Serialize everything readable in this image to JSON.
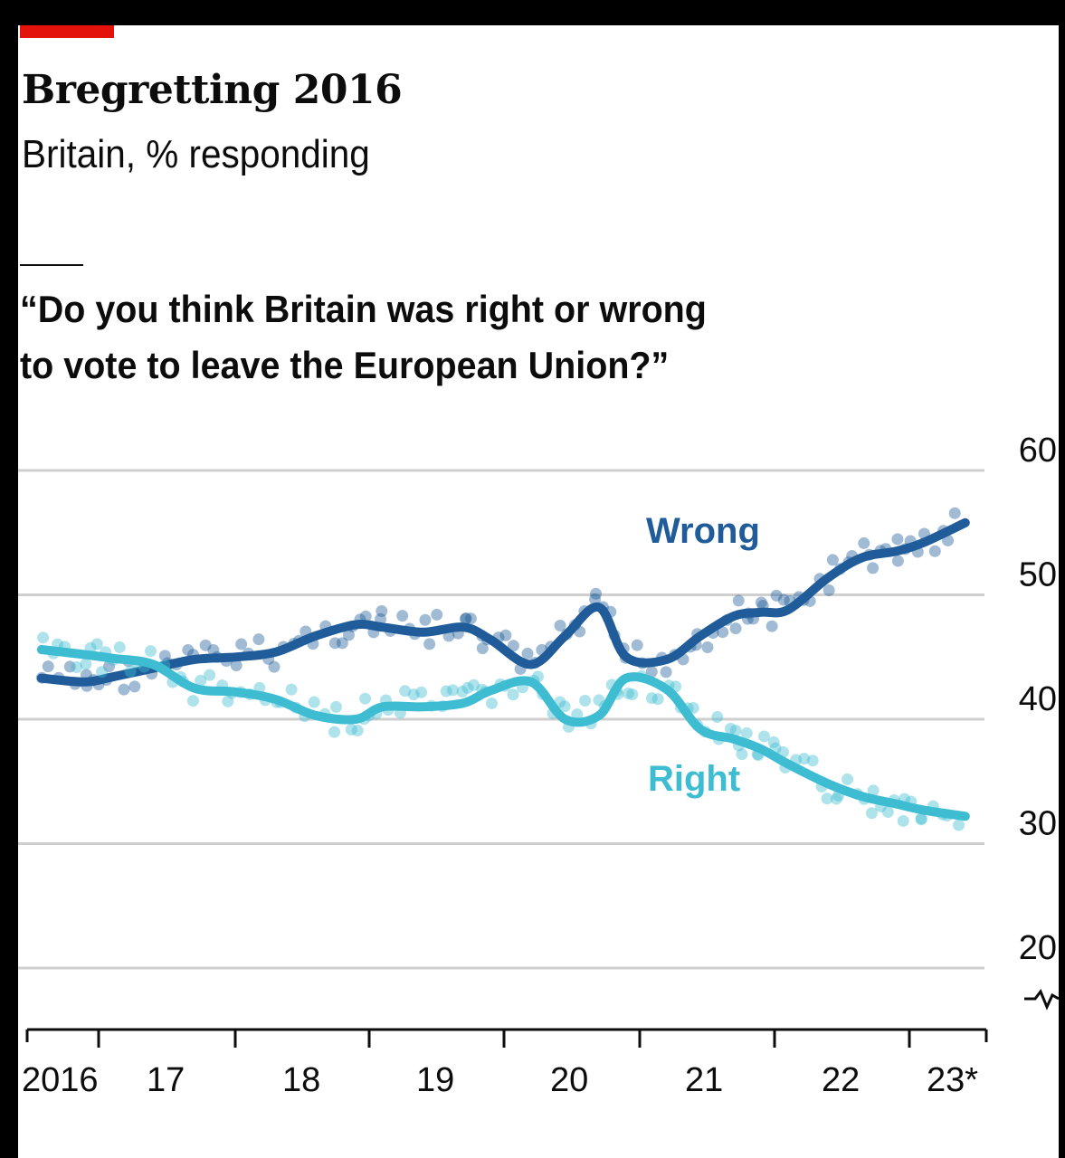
{
  "title": "Bregretting 2016",
  "subtitle": "Britain, % responding",
  "question_lines": [
    "“Do you think Britain was right or wrong",
    "to vote to leave the European Union?”"
  ],
  "colors": {
    "accent": "#e3120b",
    "wrong": "#1f5c99",
    "right": "#3ebcd2",
    "grid": "#cfcfcf",
    "text": "#0c0c0c"
  },
  "chart_data": {
    "type": "line",
    "xlabel": "",
    "ylabel": "",
    "x_ticks": [
      "2016",
      "17",
      "18",
      "19",
      "20",
      "21",
      "22",
      "23*"
    ],
    "y_ticks": [
      60,
      50,
      40,
      30,
      20
    ],
    "ylim": [
      15,
      60
    ],
    "y_axis_break": true,
    "grid": true,
    "series": [
      {
        "name": "Wrong",
        "color": "#1f5c99",
        "x": [
          2016.6,
          2016.9,
          2017.1,
          2017.4,
          2017.7,
          2018.0,
          2018.3,
          2018.6,
          2018.9,
          2019.1,
          2019.4,
          2019.7,
          2019.9,
          2020.2,
          2020.45,
          2020.7,
          2020.9,
          2021.2,
          2021.45,
          2021.7,
          2021.9,
          2022.1,
          2022.4,
          2022.65,
          2022.9,
          2023.1,
          2023.4
        ],
        "y": [
          43.3,
          43.0,
          43.4,
          44.1,
          44.8,
          45.0,
          45.4,
          46.7,
          47.6,
          47.4,
          47.0,
          47.4,
          46.4,
          44.4,
          46.7,
          49.0,
          45.0,
          44.8,
          46.7,
          48.3,
          48.6,
          48.8,
          51.4,
          53.0,
          53.5,
          54.2,
          55.8
        ]
      },
      {
        "name": "Right",
        "color": "#3ebcd2",
        "x": [
          2016.6,
          2016.9,
          2017.1,
          2017.4,
          2017.7,
          2018.0,
          2018.3,
          2018.6,
          2018.9,
          2019.1,
          2019.4,
          2019.7,
          2019.9,
          2020.2,
          2020.45,
          2020.7,
          2020.9,
          2021.2,
          2021.45,
          2021.7,
          2021.9,
          2022.1,
          2022.4,
          2022.65,
          2022.9,
          2023.1,
          2023.4
        ],
        "y": [
          45.6,
          45.2,
          44.9,
          44.4,
          42.5,
          42.2,
          41.6,
          40.3,
          40.0,
          41.0,
          41.0,
          41.3,
          42.3,
          43.0,
          40.0,
          40.3,
          43.3,
          42.4,
          39.2,
          38.4,
          37.6,
          36.4,
          34.8,
          33.8,
          33.2,
          32.7,
          32.2
        ]
      }
    ]
  }
}
